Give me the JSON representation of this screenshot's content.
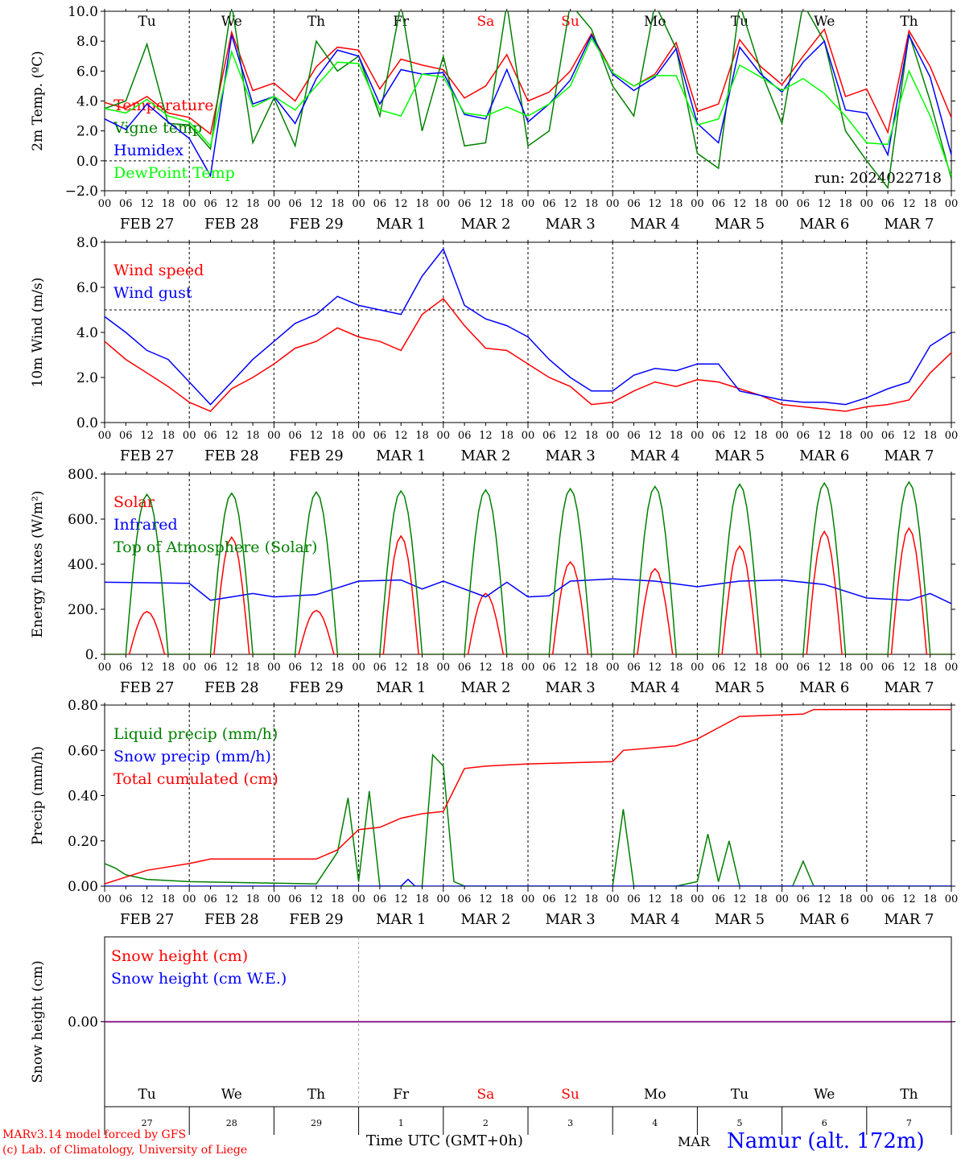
{
  "run_label": "run: 2024022718",
  "credits": [
    "MARv3.14 model forced by GFS",
    "(c) Lab. of Climatology, University of Liege"
  ],
  "time_axis_label": "Time UTC (GMT+0h)",
  "station": "Namur (alt. 172m)",
  "bottom_month": "MAR",
  "colors": {
    "red": "#ff0000",
    "green": "#008000",
    "blue": "#0000ff",
    "lightgreen": "#00ff00",
    "black": "#000000",
    "purple": "#800080"
  },
  "days": [
    {
      "weekday": "Tu",
      "date": "FEB  27",
      "daynum": "27",
      "weekend": false
    },
    {
      "weekday": "We",
      "date": "FEB  28",
      "daynum": "28",
      "weekend": false
    },
    {
      "weekday": "Th",
      "date": "FEB  29",
      "daynum": "29",
      "weekend": false
    },
    {
      "weekday": "Fr",
      "date": "MAR   1",
      "daynum": "1",
      "weekend": false
    },
    {
      "weekday": "Sa",
      "date": "MAR   2",
      "daynum": "2",
      "weekend": true
    },
    {
      "weekday": "Su",
      "date": "MAR   3",
      "daynum": "3",
      "weekend": true
    },
    {
      "weekday": "Mo",
      "date": "MAR   4",
      "daynum": "4",
      "weekend": false
    },
    {
      "weekday": "Tu",
      "date": "MAR   5",
      "daynum": "5",
      "weekend": false
    },
    {
      "weekday": "We",
      "date": "MAR   6",
      "daynum": "6",
      "weekend": false
    },
    {
      "weekday": "Th",
      "date": "MAR   7",
      "daynum": "7",
      "weekend": false
    }
  ],
  "hour_ticks": [
    "00",
    "06",
    "12",
    "18"
  ],
  "chart_data": [
    {
      "type": "line",
      "ylabel": "2m Temp. (ºC)",
      "ylim": [
        -2,
        10
      ],
      "yticks": [
        -2,
        0,
        2,
        4,
        6,
        8,
        10
      ],
      "ytick_labels": [
        "−2.0",
        "0.0",
        "2.0",
        "4.0",
        "6.0",
        "8.0",
        "10.0"
      ],
      "x_unit": "hours since FEB 27 00 UTC",
      "reference_line": 0,
      "series": [
        {
          "name": "Temperature",
          "color": "red",
          "x": [
            0,
            6,
            12,
            18,
            24,
            30,
            36,
            42,
            48,
            54,
            60,
            66,
            72,
            78,
            84,
            90,
            96,
            102,
            108,
            114,
            120,
            126,
            132,
            138,
            144,
            150,
            156,
            162,
            168,
            174,
            180,
            186,
            192,
            198,
            204,
            210,
            216,
            222,
            228,
            234,
            240
          ],
          "y": [
            3.9,
            3.5,
            4.3,
            3.2,
            2.9,
            1.8,
            8.6,
            4.7,
            5.2,
            4.0,
            6.3,
            7.6,
            7.4,
            4.8,
            6.8,
            6.4,
            6.1,
            4.2,
            5.0,
            7.1,
            4.0,
            4.6,
            6.0,
            8.5,
            5.9,
            5.0,
            5.8,
            7.9,
            3.3,
            3.8,
            8.1,
            6.3,
            5.1,
            7.0,
            8.8,
            4.3,
            4.8,
            1.9,
            8.7,
            6.3,
            2.9
          ]
        },
        {
          "name": "Vigne temp",
          "color": "green",
          "x": [
            0,
            6,
            12,
            18,
            24,
            30,
            36,
            42,
            48,
            54,
            60,
            66,
            72,
            78,
            84,
            90,
            96,
            102,
            108,
            114,
            120,
            126,
            132,
            138,
            144,
            150,
            156,
            162,
            168,
            174,
            180,
            186,
            192,
            198,
            204,
            210,
            216,
            222,
            228,
            234,
            240
          ],
          "y": [
            3.5,
            4.0,
            7.8,
            2.5,
            2.4,
            0.8,
            10.5,
            1.2,
            4.2,
            1.0,
            8.0,
            6.0,
            7.0,
            3.0,
            10.5,
            2.0,
            7.0,
            1.0,
            1.2,
            10.5,
            1.0,
            2.0,
            10.5,
            8.8,
            5.0,
            3.0,
            10.5,
            7.5,
            0.5,
            -0.5,
            10.5,
            6.0,
            2.5,
            10.5,
            8.0,
            2.0,
            0.0,
            -1.8,
            8.5,
            4.0,
            -1.2
          ]
        },
        {
          "name": "Humidex",
          "color": "blue",
          "x": [
            0,
            6,
            12,
            18,
            24,
            30,
            36,
            42,
            48,
            54,
            60,
            66,
            72,
            78,
            84,
            90,
            96,
            102,
            108,
            114,
            120,
            126,
            132,
            138,
            144,
            150,
            156,
            162,
            168,
            174,
            180,
            186,
            192,
            198,
            204,
            210,
            216,
            222,
            228,
            234,
            240
          ],
          "y": [
            2.8,
            2.1,
            3.8,
            2.6,
            1.5,
            -1.0,
            8.4,
            3.8,
            4.3,
            2.5,
            5.5,
            7.4,
            7.0,
            3.8,
            6.1,
            5.8,
            5.9,
            3.1,
            2.8,
            6.1,
            2.6,
            3.8,
            5.4,
            8.4,
            5.8,
            4.7,
            5.6,
            7.5,
            2.5,
            1.2,
            7.6,
            5.8,
            4.6,
            6.6,
            8.0,
            3.4,
            3.2,
            0.4,
            8.4,
            5.6,
            0.4
          ]
        },
        {
          "name": "DewPoint Temp",
          "color": "lightgreen",
          "x": [
            0,
            6,
            12,
            18,
            24,
            30,
            36,
            42,
            48,
            54,
            60,
            66,
            72,
            78,
            84,
            90,
            96,
            102,
            108,
            114,
            120,
            126,
            132,
            138,
            144,
            150,
            156,
            162,
            168,
            174,
            180,
            186,
            192,
            198,
            204,
            210,
            216,
            222,
            228,
            234,
            240
          ],
          "y": [
            3.5,
            3.2,
            4.1,
            3.0,
            2.6,
            1.0,
            7.3,
            3.6,
            4.3,
            3.4,
            5.0,
            6.6,
            6.5,
            3.4,
            3.0,
            5.8,
            5.6,
            3.2,
            3.0,
            3.6,
            3.0,
            3.8,
            5.0,
            8.2,
            5.9,
            5.0,
            5.7,
            5.7,
            2.4,
            2.8,
            6.4,
            5.6,
            4.7,
            5.5,
            4.5,
            3.0,
            1.2,
            1.1,
            6.0,
            3.0,
            -1.0
          ]
        }
      ]
    },
    {
      "type": "line",
      "ylabel": "10m Wind (m/s)",
      "ylim": [
        0,
        8
      ],
      "yticks": [
        0,
        2,
        4,
        6,
        8
      ],
      "ytick_labels": [
        "0.0",
        "2.0",
        "4.0",
        "6.0",
        "8.0"
      ],
      "reference_line": 5,
      "series": [
        {
          "name": "Wind speed",
          "color": "red",
          "x": [
            0,
            6,
            12,
            18,
            24,
            30,
            36,
            42,
            48,
            54,
            60,
            66,
            72,
            78,
            84,
            90,
            96,
            102,
            108,
            114,
            120,
            126,
            132,
            138,
            144,
            150,
            156,
            162,
            168,
            174,
            180,
            186,
            192,
            198,
            204,
            210,
            216,
            222,
            228,
            234,
            240
          ],
          "y": [
            3.6,
            2.8,
            2.2,
            1.6,
            0.9,
            0.5,
            1.5,
            2.0,
            2.6,
            3.3,
            3.6,
            4.2,
            3.8,
            3.6,
            3.2,
            4.8,
            5.5,
            4.3,
            3.3,
            3.2,
            2.6,
            2.0,
            1.6,
            0.8,
            0.9,
            1.4,
            1.8,
            1.6,
            1.9,
            1.8,
            1.5,
            1.2,
            0.8,
            0.7,
            0.6,
            0.5,
            0.7,
            0.8,
            1.0,
            2.2,
            3.1
          ]
        },
        {
          "name": "Wind gust",
          "color": "blue",
          "x": [
            0,
            6,
            12,
            18,
            24,
            30,
            36,
            42,
            48,
            54,
            60,
            66,
            72,
            78,
            84,
            90,
            96,
            102,
            108,
            114,
            120,
            126,
            132,
            138,
            144,
            150,
            156,
            162,
            168,
            174,
            180,
            186,
            192,
            198,
            204,
            210,
            216,
            222,
            228,
            234,
            240
          ],
          "y": [
            4.7,
            4.0,
            3.2,
            2.8,
            1.8,
            0.8,
            1.8,
            2.8,
            3.6,
            4.4,
            4.8,
            5.6,
            5.2,
            5.0,
            4.8,
            6.5,
            7.7,
            5.2,
            4.6,
            4.3,
            3.8,
            2.8,
            2.0,
            1.4,
            1.4,
            2.1,
            2.4,
            2.3,
            2.6,
            2.6,
            1.4,
            1.2,
            1.0,
            0.9,
            0.9,
            0.8,
            1.1,
            1.5,
            1.8,
            3.4,
            4.0
          ]
        }
      ]
    },
    {
      "type": "line",
      "ylabel": "Energy fluxes (W/m²)",
      "ylim": [
        0,
        800
      ],
      "yticks": [
        0,
        200,
        400,
        600,
        800
      ],
      "ytick_labels": [
        "0.",
        "200.",
        "400.",
        "600.",
        "800."
      ],
      "series": [
        {
          "name": "Solar",
          "color": "red",
          "peaks": [
            190,
            520,
            195,
            525,
            270,
            410,
            380,
            480,
            545,
            560
          ]
        },
        {
          "name": "Infrared",
          "color": "blue",
          "x": [
            0,
            12,
            24,
            30,
            36,
            42,
            48,
            60,
            72,
            84,
            90,
            96,
            108,
            114,
            120,
            126,
            132,
            144,
            156,
            168,
            180,
            192,
            204,
            216,
            228,
            234,
            240
          ],
          "y": [
            320,
            318,
            315,
            240,
            255,
            270,
            255,
            265,
            325,
            330,
            290,
            325,
            255,
            320,
            255,
            260,
            325,
            335,
            325,
            300,
            325,
            330,
            310,
            250,
            240,
            270,
            225
          ]
        },
        {
          "name": "Top of Atmosphere (Solar)",
          "color": "green",
          "peaks": [
            710,
            715,
            720,
            725,
            730,
            735,
            745,
            755,
            760,
            765
          ]
        }
      ]
    },
    {
      "type": "line",
      "ylabel": "Precip (mm/h)",
      "ylim": [
        0,
        0.8
      ],
      "yticks": [
        0,
        0.2,
        0.4,
        0.6,
        0.8
      ],
      "ytick_labels": [
        "0.00",
        "0.20",
        "0.40",
        "0.60",
        "0.80"
      ],
      "series": [
        {
          "name": "Liquid precip (mm/h)",
          "color": "green",
          "x": [
            0,
            3,
            6,
            12,
            24,
            60,
            66,
            69,
            72,
            75,
            78,
            84,
            90,
            93,
            96,
            99,
            102,
            105,
            108,
            120,
            144,
            147,
            150,
            162,
            168,
            171,
            174,
            177,
            180,
            195,
            198,
            201,
            240
          ],
          "y": [
            0.1,
            0.08,
            0.05,
            0.03,
            0.02,
            0.01,
            0.15,
            0.39,
            0.02,
            0.42,
            0.0,
            0.0,
            0.0,
            0.58,
            0.53,
            0.02,
            0.0,
            0.0,
            0.0,
            0.0,
            0.0,
            0.34,
            0.0,
            0.0,
            0.02,
            0.23,
            0.02,
            0.2,
            0.0,
            0.0,
            0.11,
            0.0,
            0.0
          ]
        },
        {
          "name": "Snow precip (mm/h)",
          "color": "blue",
          "x": [
            0,
            84,
            86,
            88,
            240
          ],
          "y": [
            0,
            0,
            0.03,
            0,
            0
          ]
        },
        {
          "name": "Total cumulated (cm)",
          "color": "red",
          "x": [
            0,
            12,
            24,
            30,
            60,
            66,
            72,
            78,
            84,
            90,
            96,
            102,
            108,
            120,
            144,
            147,
            162,
            168,
            174,
            180,
            198,
            201,
            240
          ],
          "y": [
            0.01,
            0.07,
            0.1,
            0.12,
            0.12,
            0.16,
            0.25,
            0.26,
            0.3,
            0.32,
            0.33,
            0.52,
            0.53,
            0.54,
            0.55,
            0.6,
            0.62,
            0.65,
            0.7,
            0.75,
            0.76,
            0.78,
            0.78
          ]
        }
      ]
    },
    {
      "type": "line",
      "ylabel": "Snow height (cm)",
      "ylim": [
        -1,
        1
      ],
      "yticks": [
        0
      ],
      "ytick_labels": [
        "0.00"
      ],
      "series": [
        {
          "name": "Snow height (cm)",
          "color": "red",
          "x": [
            0,
            240
          ],
          "y": [
            0,
            0
          ]
        },
        {
          "name": "Snow height (cm W.E.)",
          "color": "blue",
          "x": [
            0,
            240
          ],
          "y": [
            0,
            0
          ]
        }
      ]
    }
  ]
}
